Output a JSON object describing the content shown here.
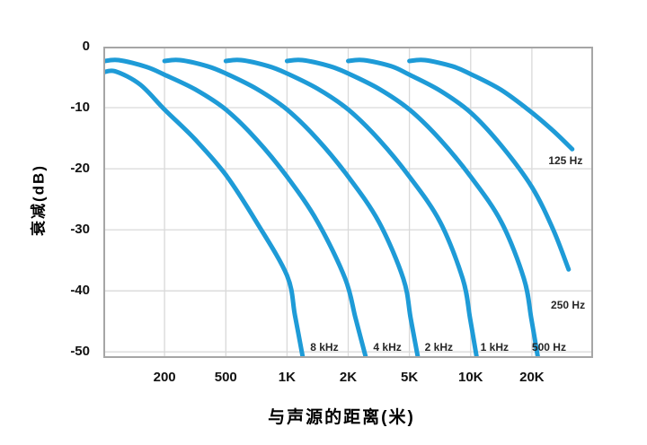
{
  "chart_data": {
    "type": "line",
    "title": "",
    "xlabel": "与声源的距离(米)",
    "ylabel": "衰减(dB)",
    "x_axis": {
      "scale": "pseudo-log 1-2-5 equal spacing",
      "unit_range": [
        0,
        8
      ],
      "unit_to_distance": [
        "100",
        "200",
        "500",
        "1K",
        "2K",
        "5K",
        "10K",
        "20K",
        "50K"
      ],
      "ticks": [
        {
          "label": "200",
          "unit": 1
        },
        {
          "label": "500",
          "unit": 2
        },
        {
          "label": "1K",
          "unit": 3
        },
        {
          "label": "2K",
          "unit": 4
        },
        {
          "label": "5K",
          "unit": 5
        },
        {
          "label": "10K",
          "unit": 6
        },
        {
          "label": "20K",
          "unit": 7
        }
      ],
      "grid": true
    },
    "y_axis": {
      "range": [
        0,
        -51
      ],
      "ticks": [
        {
          "label": "0",
          "value": 0
        },
        {
          "label": "-10",
          "value": -10
        },
        {
          "label": "-20",
          "value": -20
        },
        {
          "label": "-30",
          "value": -30
        },
        {
          "label": "-40",
          "value": -40
        },
        {
          "label": "-50",
          "value": -50
        }
      ],
      "grid": true
    },
    "legend": "labels placed on plot next to each curve",
    "series": [
      {
        "name": "8 kHz",
        "label_pos": {
          "u": 3.61,
          "db": -49.2
        },
        "points": [
          [
            0,
            -4.2
          ],
          [
            0.2,
            -4.05
          ],
          [
            0.6,
            -6.2
          ],
          [
            1,
            -10.3
          ],
          [
            1.5,
            -15.2
          ],
          [
            2,
            -21
          ],
          [
            2.5,
            -28.7
          ],
          [
            3,
            -37.5
          ],
          [
            3.13,
            -44
          ],
          [
            3.26,
            -51
          ]
        ]
      },
      {
        "name": "4 kHz",
        "label_pos": {
          "u": 4.64,
          "db": -49.2
        },
        "points": [
          [
            0,
            -2.4
          ],
          [
            0.25,
            -2.2
          ],
          [
            0.7,
            -3.3
          ],
          [
            1,
            -4.6
          ],
          [
            1.5,
            -7
          ],
          [
            2,
            -10.3
          ],
          [
            2.5,
            -15.2
          ],
          [
            3,
            -21.3
          ],
          [
            3.5,
            -28.7
          ],
          [
            3.95,
            -38
          ],
          [
            4.12,
            -44.5
          ],
          [
            4.29,
            -51
          ]
        ]
      },
      {
        "name": "2 kHz",
        "label_pos": {
          "u": 5.48,
          "db": -49.2
        },
        "points": [
          [
            1,
            -2.35
          ],
          [
            1.25,
            -2.2
          ],
          [
            1.7,
            -3.2
          ],
          [
            2,
            -4.4
          ],
          [
            2.5,
            -6.9
          ],
          [
            3,
            -10.3
          ],
          [
            3.5,
            -15.2
          ],
          [
            4,
            -21.3
          ],
          [
            4.5,
            -28.7
          ],
          [
            4.9,
            -38
          ],
          [
            5.02,
            -44.5
          ],
          [
            5.14,
            -51
          ]
        ]
      },
      {
        "name": "1 kHz",
        "label_pos": {
          "u": 6.39,
          "db": -49.2
        },
        "points": [
          [
            2,
            -2.35
          ],
          [
            2.25,
            -2.2
          ],
          [
            2.7,
            -3.2
          ],
          [
            3,
            -4.4
          ],
          [
            3.5,
            -6.9
          ],
          [
            4,
            -10.3
          ],
          [
            4.5,
            -15.2
          ],
          [
            5,
            -21.3
          ],
          [
            5.5,
            -28.7
          ],
          [
            5.87,
            -38
          ],
          [
            5.99,
            -44.5
          ],
          [
            6.1,
            -51
          ]
        ]
      },
      {
        "name": "500 Hz",
        "label_pos": {
          "u": 7.28,
          "db": -49.2
        },
        "points": [
          [
            3,
            -2.35
          ],
          [
            3.25,
            -2.2
          ],
          [
            3.7,
            -3.2
          ],
          [
            4,
            -4.4
          ],
          [
            4.5,
            -6.9
          ],
          [
            5,
            -10.3
          ],
          [
            5.5,
            -15.2
          ],
          [
            6,
            -21.3
          ],
          [
            6.5,
            -28.7
          ],
          [
            6.87,
            -38
          ],
          [
            6.99,
            -44.5
          ],
          [
            7.1,
            -51
          ]
        ]
      },
      {
        "name": "250 Hz",
        "label_pos": {
          "u": 7.59,
          "db": -42.4
        },
        "points": [
          [
            4,
            -2.35
          ],
          [
            4.25,
            -2.2
          ],
          [
            4.7,
            -3.2
          ],
          [
            5,
            -4.6
          ],
          [
            5.5,
            -7.2
          ],
          [
            6,
            -10.8
          ],
          [
            6.5,
            -16.2
          ],
          [
            7,
            -23
          ],
          [
            7.35,
            -30
          ],
          [
            7.6,
            -36.5
          ]
        ]
      },
      {
        "name": "125 Hz",
        "label_pos": {
          "u": 7.55,
          "db": -18.6
        },
        "points": [
          [
            5,
            -2.35
          ],
          [
            5.25,
            -2.2
          ],
          [
            5.7,
            -3.2
          ],
          [
            6,
            -4.5
          ],
          [
            6.5,
            -7.1
          ],
          [
            7,
            -10.8
          ],
          [
            7.35,
            -13.8
          ],
          [
            7.66,
            -16.8
          ]
        ]
      }
    ]
  },
  "colors": {
    "curve": "#1E9BD7",
    "grid": "#D9D9D9",
    "border": "#A6A6A6",
    "tick_text": "#111111",
    "curve_label_text": "#262626",
    "background": "#FFFFFF"
  }
}
